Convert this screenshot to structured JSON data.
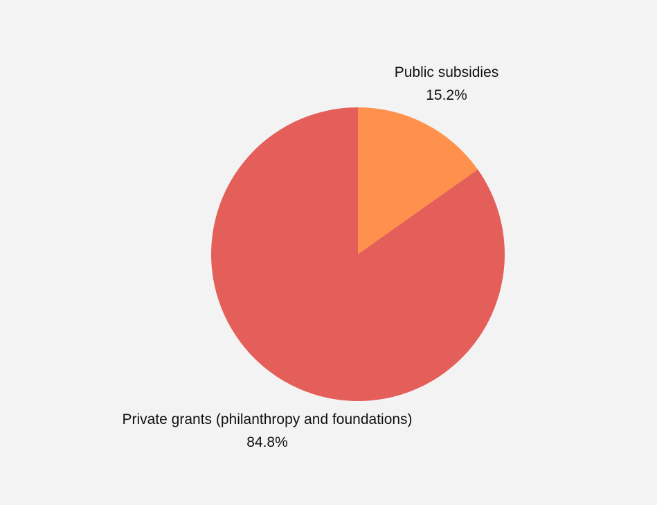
{
  "chart_data": {
    "type": "pie",
    "slices": [
      {
        "label": "Public subsidies",
        "value": 15.2,
        "value_label": "15.2%",
        "color": "#ff914d"
      },
      {
        "label": "Private grants (philanthropy and foundations)",
        "value": 84.8,
        "value_label": "84.8%",
        "color": "#e45e5a"
      }
    ],
    "start_angle": "12 o'clock",
    "direction": "clockwise",
    "legend": "none"
  },
  "colors": {
    "background": "#f3f3f3",
    "text": "#111111"
  }
}
